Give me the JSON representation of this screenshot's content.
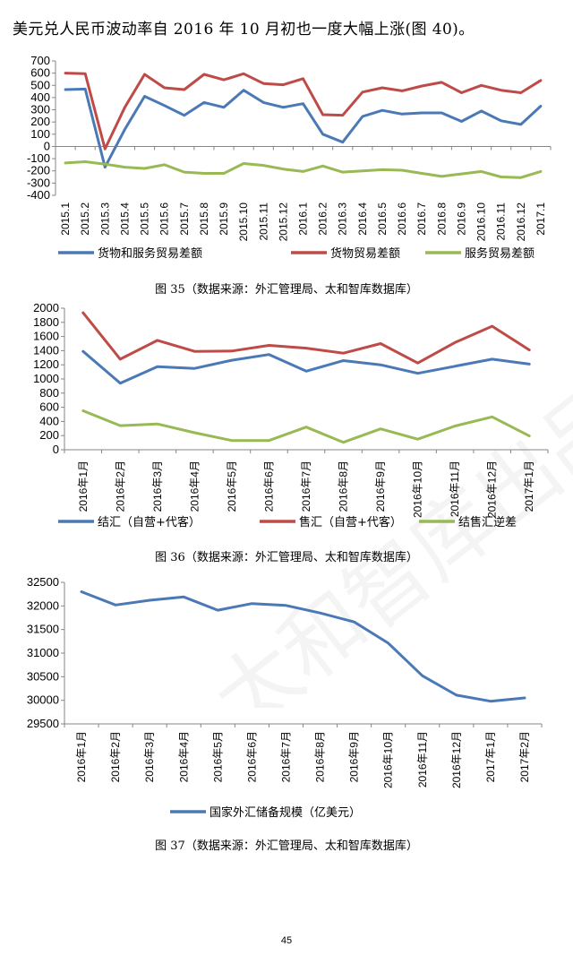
{
  "intro_text": "美元兑人民币波动率自 2016 年 10 月初也一度大幅上涨(图 40)。",
  "page_number": "45",
  "watermark": "太和智库出品",
  "colors": {
    "blue": "#4A79B5",
    "red": "#BE4B48",
    "green": "#98B954"
  },
  "chart_data": [
    {
      "type": "line",
      "title": "",
      "caption": "图 35（数据来源：外汇管理局、太和智库数据库）",
      "ylim": [
        -400,
        700
      ],
      "yticks": [
        -400,
        -300,
        -200,
        -100,
        0,
        100,
        200,
        300,
        400,
        500,
        600,
        700
      ],
      "ytick_labels": [
        "-400",
        "-300",
        "-200",
        "-100",
        "0",
        "100",
        "200",
        "300",
        "400",
        "500",
        "600",
        "700"
      ],
      "categories": [
        "2015.1",
        "2015.2",
        "2015.3",
        "2015.4",
        "2015.5",
        "2015.6",
        "2015.7",
        "2015.8",
        "2015.9",
        "2015.10",
        "2015.11",
        "2015.12",
        "2016.1",
        "2016.2",
        "2016.3",
        "2016.4",
        "2016.5",
        "2016.6",
        "2016.7",
        "2016.8",
        "2016.9",
        "2016.10",
        "2016.11",
        "2016.12",
        "2017.1"
      ],
      "series": [
        {
          "name": "货物和服务贸易差额",
          "color": "#4A79B5",
          "values": [
            465,
            470,
            -170,
            140,
            410,
            335,
            255,
            360,
            320,
            460,
            360,
            320,
            350,
            100,
            35,
            245,
            295,
            265,
            275,
            275,
            205,
            290,
            210,
            180,
            330
          ]
        },
        {
          "name": "货物贸易差额",
          "color": "#BE4B48",
          "values": [
            600,
            595,
            -20,
            320,
            590,
            480,
            465,
            590,
            545,
            595,
            515,
            505,
            555,
            260,
            255,
            445,
            480,
            455,
            495,
            525,
            440,
            500,
            460,
            440,
            540
          ]
        },
        {
          "name": "服务贸易差额",
          "color": "#98B954",
          "values": [
            -135,
            -125,
            -145,
            -170,
            -180,
            -150,
            -210,
            -220,
            -220,
            -140,
            -155,
            -185,
            -205,
            -160,
            -210,
            -200,
            -190,
            -195,
            -220,
            -245,
            -225,
            -205,
            -250,
            -255,
            -205
          ]
        }
      ]
    },
    {
      "type": "line",
      "title": "",
      "caption": "图 36（数据来源：外汇管理局、太和智库数据库）",
      "ylim": [
        0,
        2000
      ],
      "yticks": [
        0,
        200,
        400,
        600,
        800,
        1000,
        1200,
        1400,
        1600,
        1800,
        2000
      ],
      "ytick_labels": [
        "0",
        "200",
        "400",
        "600",
        "800",
        "1000",
        "1200",
        "1400",
        "1600",
        "1800",
        "2000"
      ],
      "categories": [
        "2016年1月",
        "2016年2月",
        "2016年3月",
        "2016年4月",
        "2016年5月",
        "2016年6月",
        "2016年7月",
        "2016年8月",
        "2016年9月",
        "2016年10月",
        "2016年11月",
        "2016年12月",
        "2017年1月"
      ],
      "series": [
        {
          "name": "结汇（自营+代客）",
          "color": "#4A79B5",
          "values": [
            1390,
            940,
            1175,
            1150,
            1265,
            1345,
            1110,
            1260,
            1200,
            1080,
            1180,
            1280,
            1210
          ]
        },
        {
          "name": "售汇（自营+代客）",
          "color": "#BE4B48",
          "values": [
            1935,
            1280,
            1545,
            1390,
            1395,
            1475,
            1435,
            1365,
            1500,
            1225,
            1515,
            1745,
            1410
          ]
        },
        {
          "name": "结售汇逆差",
          "color": "#98B954",
          "values": [
            550,
            340,
            365,
            240,
            130,
            130,
            320,
            105,
            295,
            150,
            335,
            465,
            195
          ]
        }
      ]
    },
    {
      "type": "line",
      "title": "",
      "caption": "图 37（数据来源：外汇管理局、太和智库数据库）",
      "ylim": [
        29500,
        32500
      ],
      "yticks": [
        29500,
        30000,
        30500,
        31000,
        31500,
        32000,
        32500
      ],
      "ytick_labels": [
        "29500",
        "30000",
        "30500",
        "31000",
        "31500",
        "32000",
        "32500"
      ],
      "categories": [
        "2016年1月",
        "2016年2月",
        "2016年3月",
        "2016年4月",
        "2016年5月",
        "2016年6月",
        "2016年7月",
        "2016年8月",
        "2016年9月",
        "2016年10月",
        "2016年11月",
        "2016年12月",
        "2017年1月",
        "2017年2月"
      ],
      "series": [
        {
          "name": "国家外汇储备规模（亿美元）",
          "color": "#4A79B5",
          "values": [
            32300,
            32020,
            32120,
            32190,
            31910,
            32050,
            32010,
            31850,
            31660,
            31210,
            30520,
            30110,
            29980,
            30050
          ]
        }
      ]
    }
  ]
}
